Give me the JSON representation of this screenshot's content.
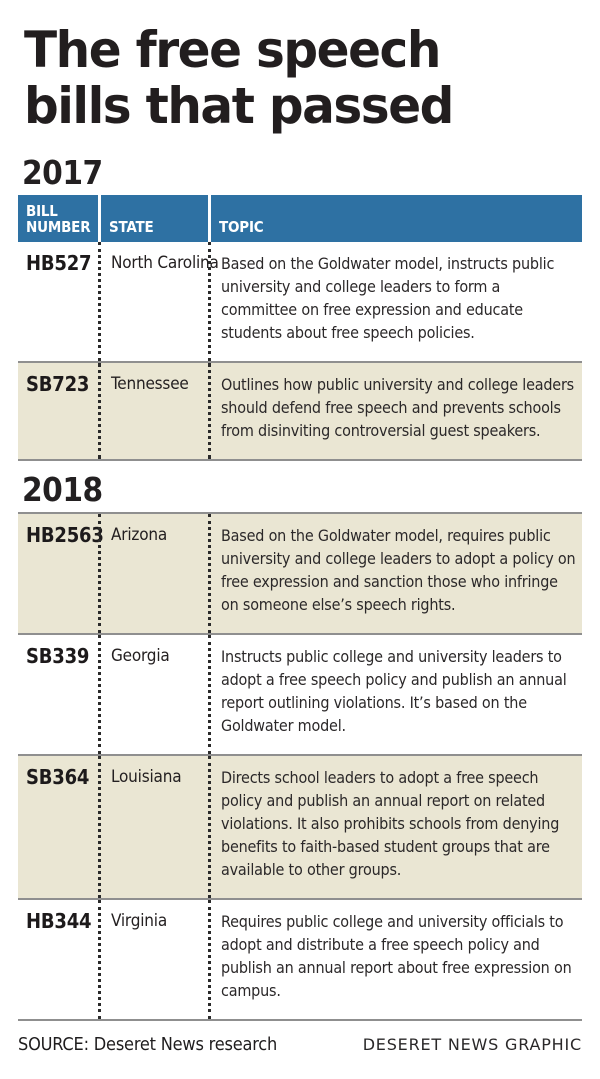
{
  "title": {
    "line1": "The free speech",
    "line2": "bills that passed"
  },
  "columns": {
    "bill": "BILL NUMBER",
    "state": "STATE",
    "topic": "TOPIC"
  },
  "sections": [
    {
      "year": "2017",
      "rows": [
        {
          "bill": "HB527",
          "state": "North Carolina",
          "topic": "Based on the Goldwater model, instructs public university and college leaders to form a committee on free expression and educate students about free speech policies."
        },
        {
          "bill": "SB723",
          "state": "Tennessee",
          "topic": "Outlines how public university and college leaders should defend free speech and prevents schools from disinviting controversial guest speakers."
        }
      ]
    },
    {
      "year": "2018",
      "rows": [
        {
          "bill": "HB2563",
          "state": "Arizona",
          "topic": "Based on the Goldwater model, requires public university and college leaders to adopt a policy on free expression and sanction those who infringe on someone else’s speech rights."
        },
        {
          "bill": "SB339",
          "state": "Georgia",
          "topic": "Instructs public college and university leaders to adopt a free speech policy and publish an annual report outlining violations. It’s based on the Goldwater model."
        },
        {
          "bill": "SB364",
          "state": "Louisiana",
          "topic": "Directs school leaders to adopt a free speech policy and publish an annual report on related violations. It also prohibits schools from denying benefits to faith-based student groups that are available to other groups."
        },
        {
          "bill": "HB344",
          "state": "Virginia",
          "topic": "Requires public college and university officials to adopt and distribute a free speech policy and publish an annual report about free expression on campus."
        }
      ]
    }
  ],
  "footer": {
    "source": "SOURCE: Deseret News research",
    "credit": "DESERET NEWS GRAPHIC"
  },
  "colors": {
    "header_blue": "#2e71a3",
    "row_beige": "#eae6d3",
    "rule_gray": "#8f8f8f",
    "title_text": "#221e1f",
    "body_text": "#2b2829"
  },
  "chart_data": {
    "type": "table",
    "title": "The free speech bills that passed",
    "columns": [
      "BILL NUMBER",
      "STATE",
      "TOPIC"
    ],
    "groups": [
      {
        "group": "2017",
        "rows": [
          [
            "HB527",
            "North Carolina",
            "Based on the Goldwater model, instructs public university and college leaders to form a committee on free expression and educate students about free speech policies."
          ],
          [
            "SB723",
            "Tennessee",
            "Outlines how public university and college leaders should defend free speech and prevents schools from disinviting controversial guest speakers."
          ]
        ]
      },
      {
        "group": "2018",
        "rows": [
          [
            "HB2563",
            "Arizona",
            "Based on the Goldwater model, requires public university and college leaders to adopt a policy on free expression and sanction those who infringe on someone else’s speech rights."
          ],
          [
            "SB339",
            "Georgia",
            "Instructs public college and university leaders to adopt a free speech policy and publish an annual report outlining violations. It’s based on the Goldwater model."
          ],
          [
            "SB364",
            "Louisiana",
            "Directs school leaders to adopt a free speech policy and publish an annual report on related violations. It also prohibits schools from denying benefits to faith-based student groups that are available to other groups."
          ],
          [
            "HB344",
            "Virginia",
            "Requires public college and university officials to adopt and distribute a free speech policy and publish an annual report about free expression on campus."
          ]
        ]
      }
    ],
    "source": "SOURCE: Deseret News research",
    "credit": "DESERET NEWS GRAPHIC"
  }
}
